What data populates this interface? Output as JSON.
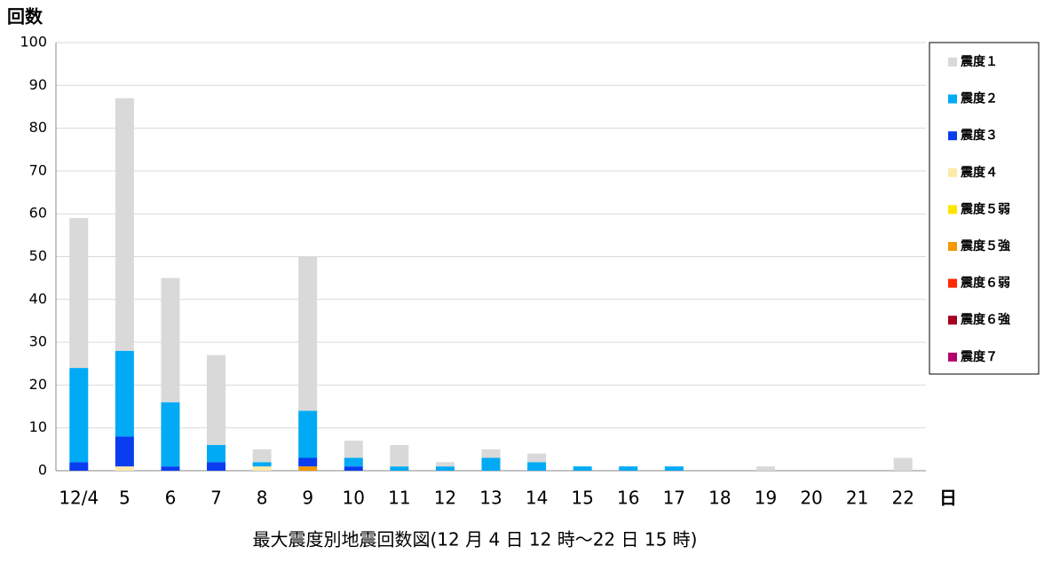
{
  "chart_data": {
    "type": "bar",
    "stacked": true,
    "y_label": "回数",
    "x_label": "日",
    "caption": "最大震度別地震回数図(12 月 4 日 12 時～22 日 15 時)",
    "categories": [
      "12/4",
      "5",
      "6",
      "7",
      "8",
      "9",
      "10",
      "11",
      "12",
      "13",
      "14",
      "15",
      "16",
      "17",
      "18",
      "19",
      "20",
      "21",
      "22"
    ],
    "ylim": [
      0,
      100
    ],
    "yticks": [
      0,
      10,
      20,
      30,
      40,
      50,
      60,
      70,
      80,
      90,
      100
    ],
    "grid": true,
    "legend": "right",
    "series": [
      {
        "name": "震度７",
        "color": "#b4006e",
        "values": [
          0,
          0,
          0,
          0,
          0,
          0,
          0,
          0,
          0,
          0,
          0,
          0,
          0,
          0,
          0,
          0,
          0,
          0,
          0
        ]
      },
      {
        "name": "震度６強",
        "color": "#a50021",
        "values": [
          0,
          0,
          0,
          0,
          0,
          0,
          0,
          0,
          0,
          0,
          0,
          0,
          0,
          0,
          0,
          0,
          0,
          0,
          0
        ]
      },
      {
        "name": "震度６弱",
        "color": "#ff2800",
        "values": [
          0,
          0,
          0,
          0,
          0,
          0,
          0,
          0,
          0,
          0,
          0,
          0,
          0,
          0,
          0,
          0,
          0,
          0,
          0
        ]
      },
      {
        "name": "震度５強",
        "color": "#f39800",
        "values": [
          0,
          0,
          0,
          0,
          0,
          1,
          0,
          0,
          0,
          0,
          0,
          0,
          0,
          0,
          0,
          0,
          0,
          0,
          0
        ]
      },
      {
        "name": "震度５弱",
        "color": "#ffe600",
        "values": [
          0,
          0,
          0,
          0,
          0,
          0,
          0,
          0,
          0,
          0,
          0,
          0,
          0,
          0,
          0,
          0,
          0,
          0,
          0
        ]
      },
      {
        "name": "震度４",
        "color": "#fde9a9",
        "values": [
          0,
          1,
          0,
          0,
          1,
          0,
          0,
          0,
          0,
          0,
          0,
          0,
          0,
          0,
          0,
          0,
          0,
          0,
          0
        ]
      },
      {
        "name": "震度３",
        "color": "#0a3cf0",
        "values": [
          2,
          7,
          1,
          2,
          0,
          2,
          1,
          0,
          0,
          0,
          0,
          0,
          0,
          0,
          0,
          0,
          0,
          0,
          0
        ]
      },
      {
        "name": "震度２",
        "color": "#00aaf5",
        "values": [
          22,
          20,
          15,
          4,
          1,
          11,
          2,
          1,
          1,
          3,
          2,
          1,
          1,
          1,
          0,
          0,
          0,
          0,
          0
        ]
      },
      {
        "name": "震度１",
        "color": "#d9d9d9",
        "values": [
          35,
          59,
          29,
          21,
          3,
          36,
          4,
          5,
          1,
          2,
          2,
          0,
          0,
          0,
          0,
          1,
          0,
          0,
          3
        ]
      }
    ]
  }
}
